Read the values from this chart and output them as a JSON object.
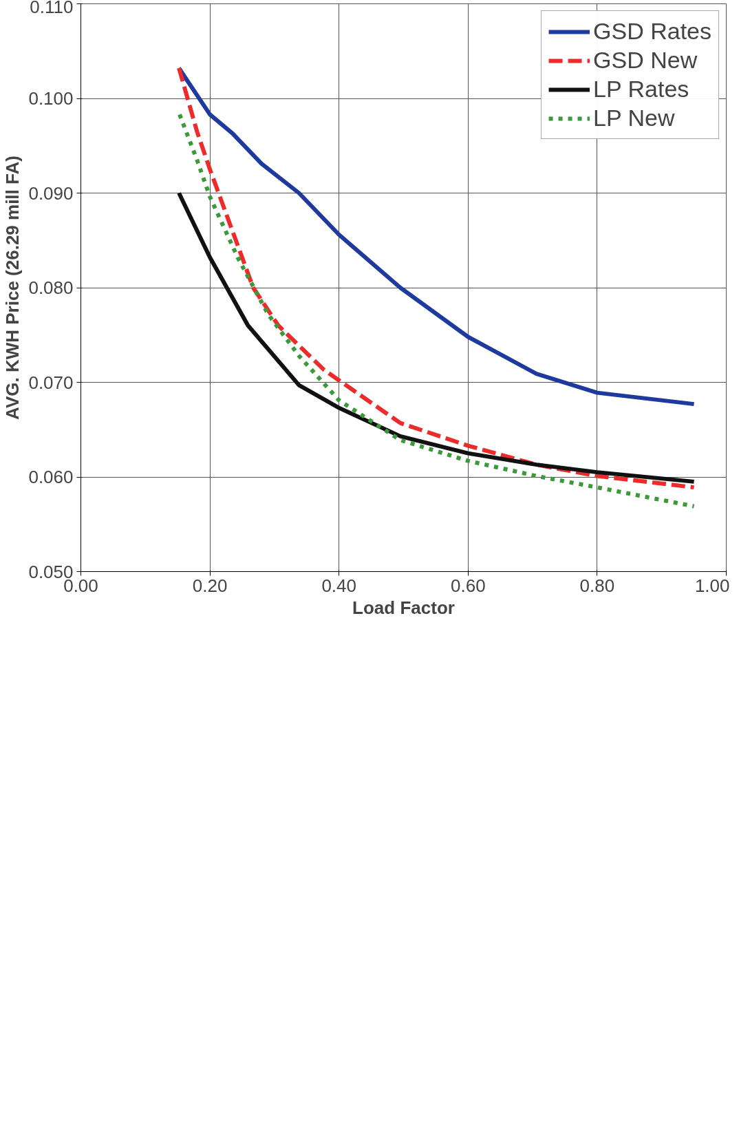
{
  "chart_data": {
    "type": "line",
    "xlabel": "Load Factor",
    "ylabel": "AVG. KWH Price (26.29 mill FA)",
    "xlim": [
      0,
      1
    ],
    "ylim": [
      0.05,
      0.11
    ],
    "xticks": [
      {
        "value": 0,
        "label": "0.00"
      },
      {
        "value": 0.2,
        "label": "0.20"
      },
      {
        "value": 0.4,
        "label": "0.40"
      },
      {
        "value": 0.6,
        "label": "0.60"
      },
      {
        "value": 0.8,
        "label": "0.80"
      },
      {
        "value": 1,
        "label": "1.00"
      }
    ],
    "yticks": [
      {
        "value": 0.05,
        "label": "0.050"
      },
      {
        "value": 0.06,
        "label": "0.060"
      },
      {
        "value": 0.07,
        "label": "0.070"
      },
      {
        "value": 0.08,
        "label": "0.080"
      },
      {
        "value": 0.09,
        "label": "0.090"
      },
      {
        "value": 0.1,
        "label": "0.100"
      },
      {
        "value": 0.11,
        "label": "0.110"
      }
    ],
    "grid": true,
    "legend": "top right",
    "series": [
      {
        "name": "GSD Rates",
        "color": "#1f3a9e",
        "line_style": "solid",
        "x": [
          0.152,
          0.2,
          0.235,
          0.28,
          0.338,
          0.4,
          0.495,
          0.6,
          0.706,
          0.8,
          0.95
        ],
        "values": [
          0.1032,
          0.0983,
          0.0963,
          0.0931,
          0.09,
          0.0856,
          0.08,
          0.0748,
          0.0709,
          0.0689,
          0.0677
        ]
      },
      {
        "name": "GSD New",
        "color": "#ee2b2b",
        "line_style": "dashed",
        "x": [
          0.152,
          0.18,
          0.2,
          0.267,
          0.306,
          0.377,
          0.495,
          0.6,
          0.706,
          0.8,
          0.95
        ],
        "values": [
          0.1032,
          0.0965,
          0.0925,
          0.08,
          0.076,
          0.0713,
          0.0657,
          0.0633,
          0.0613,
          0.0601,
          0.0589
        ]
      },
      {
        "name": "LP Rates",
        "color": "#111111",
        "line_style": "solid",
        "x": [
          0.152,
          0.2,
          0.259,
          0.338,
          0.4,
          0.495,
          0.6,
          0.706,
          0.8,
          0.95
        ],
        "values": [
          0.09,
          0.0832,
          0.076,
          0.0697,
          0.0673,
          0.0643,
          0.0625,
          0.0613,
          0.0605,
          0.0595
        ]
      },
      {
        "name": "LP New",
        "color": "#3a9a3a",
        "line_style": "dotted",
        "x": [
          0.153,
          0.18,
          0.2,
          0.243,
          0.29,
          0.338,
          0.4,
          0.495,
          0.6,
          0.706,
          0.8,
          0.95
        ],
        "values": [
          0.0983,
          0.0935,
          0.0896,
          0.0832,
          0.0772,
          0.0728,
          0.0681,
          0.0639,
          0.0617,
          0.0601,
          0.0589,
          0.0569
        ]
      }
    ]
  }
}
